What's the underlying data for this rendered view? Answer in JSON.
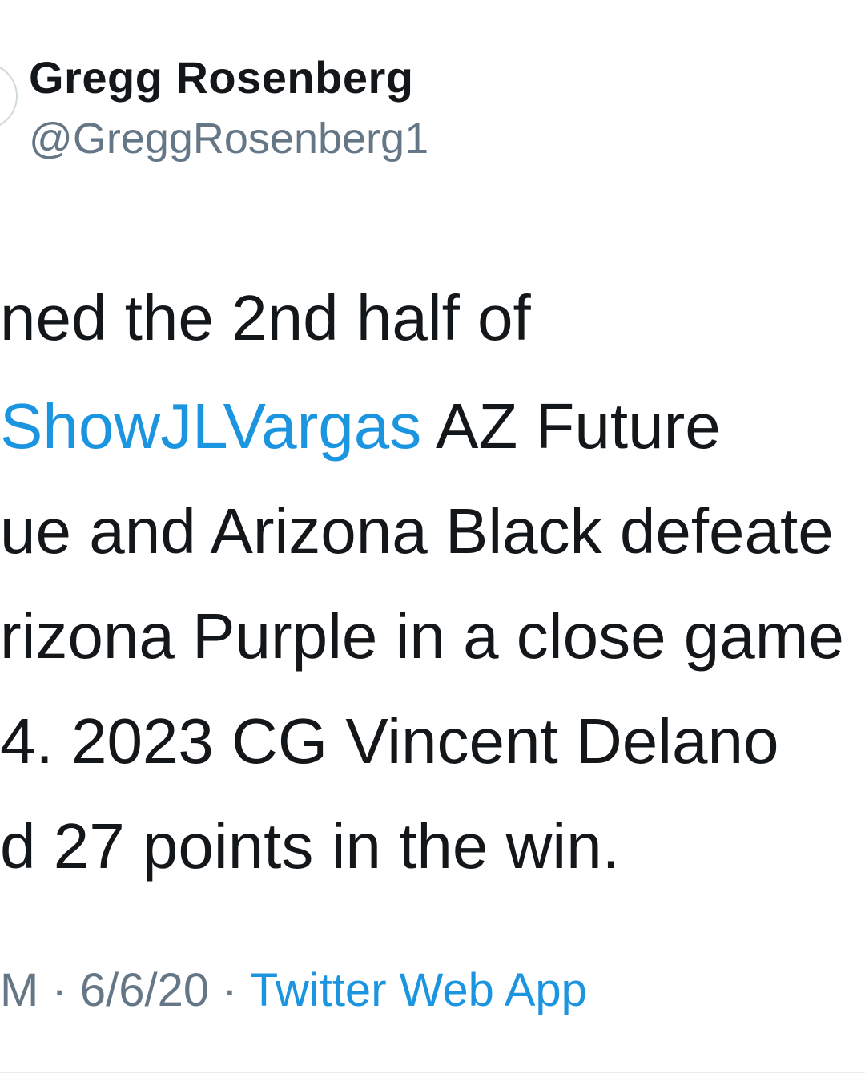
{
  "author": {
    "name": "Gregg Rosenberg",
    "handle": "@GreggRosenberg1"
  },
  "tweet": {
    "lines": [
      {
        "text": "ned the 2nd half of"
      },
      {
        "mention": "ShowJLVargas",
        "text": " AZ Future"
      },
      {
        "text": "ue and Arizona Black defeate"
      },
      {
        "text": "rizona Purple in a close game"
      },
      {
        "text": "4. 2023 CG Vincent Delano"
      },
      {
        "text": "d 27 points in the win."
      }
    ]
  },
  "meta": {
    "time_fragment": "M",
    "separator": "·",
    "date": "6/6/20",
    "source": "Twitter Web App"
  },
  "colors": {
    "text": "#14171a",
    "secondary": "#657786",
    "link": "#1b95e0",
    "divider": "#e6ecf0"
  }
}
